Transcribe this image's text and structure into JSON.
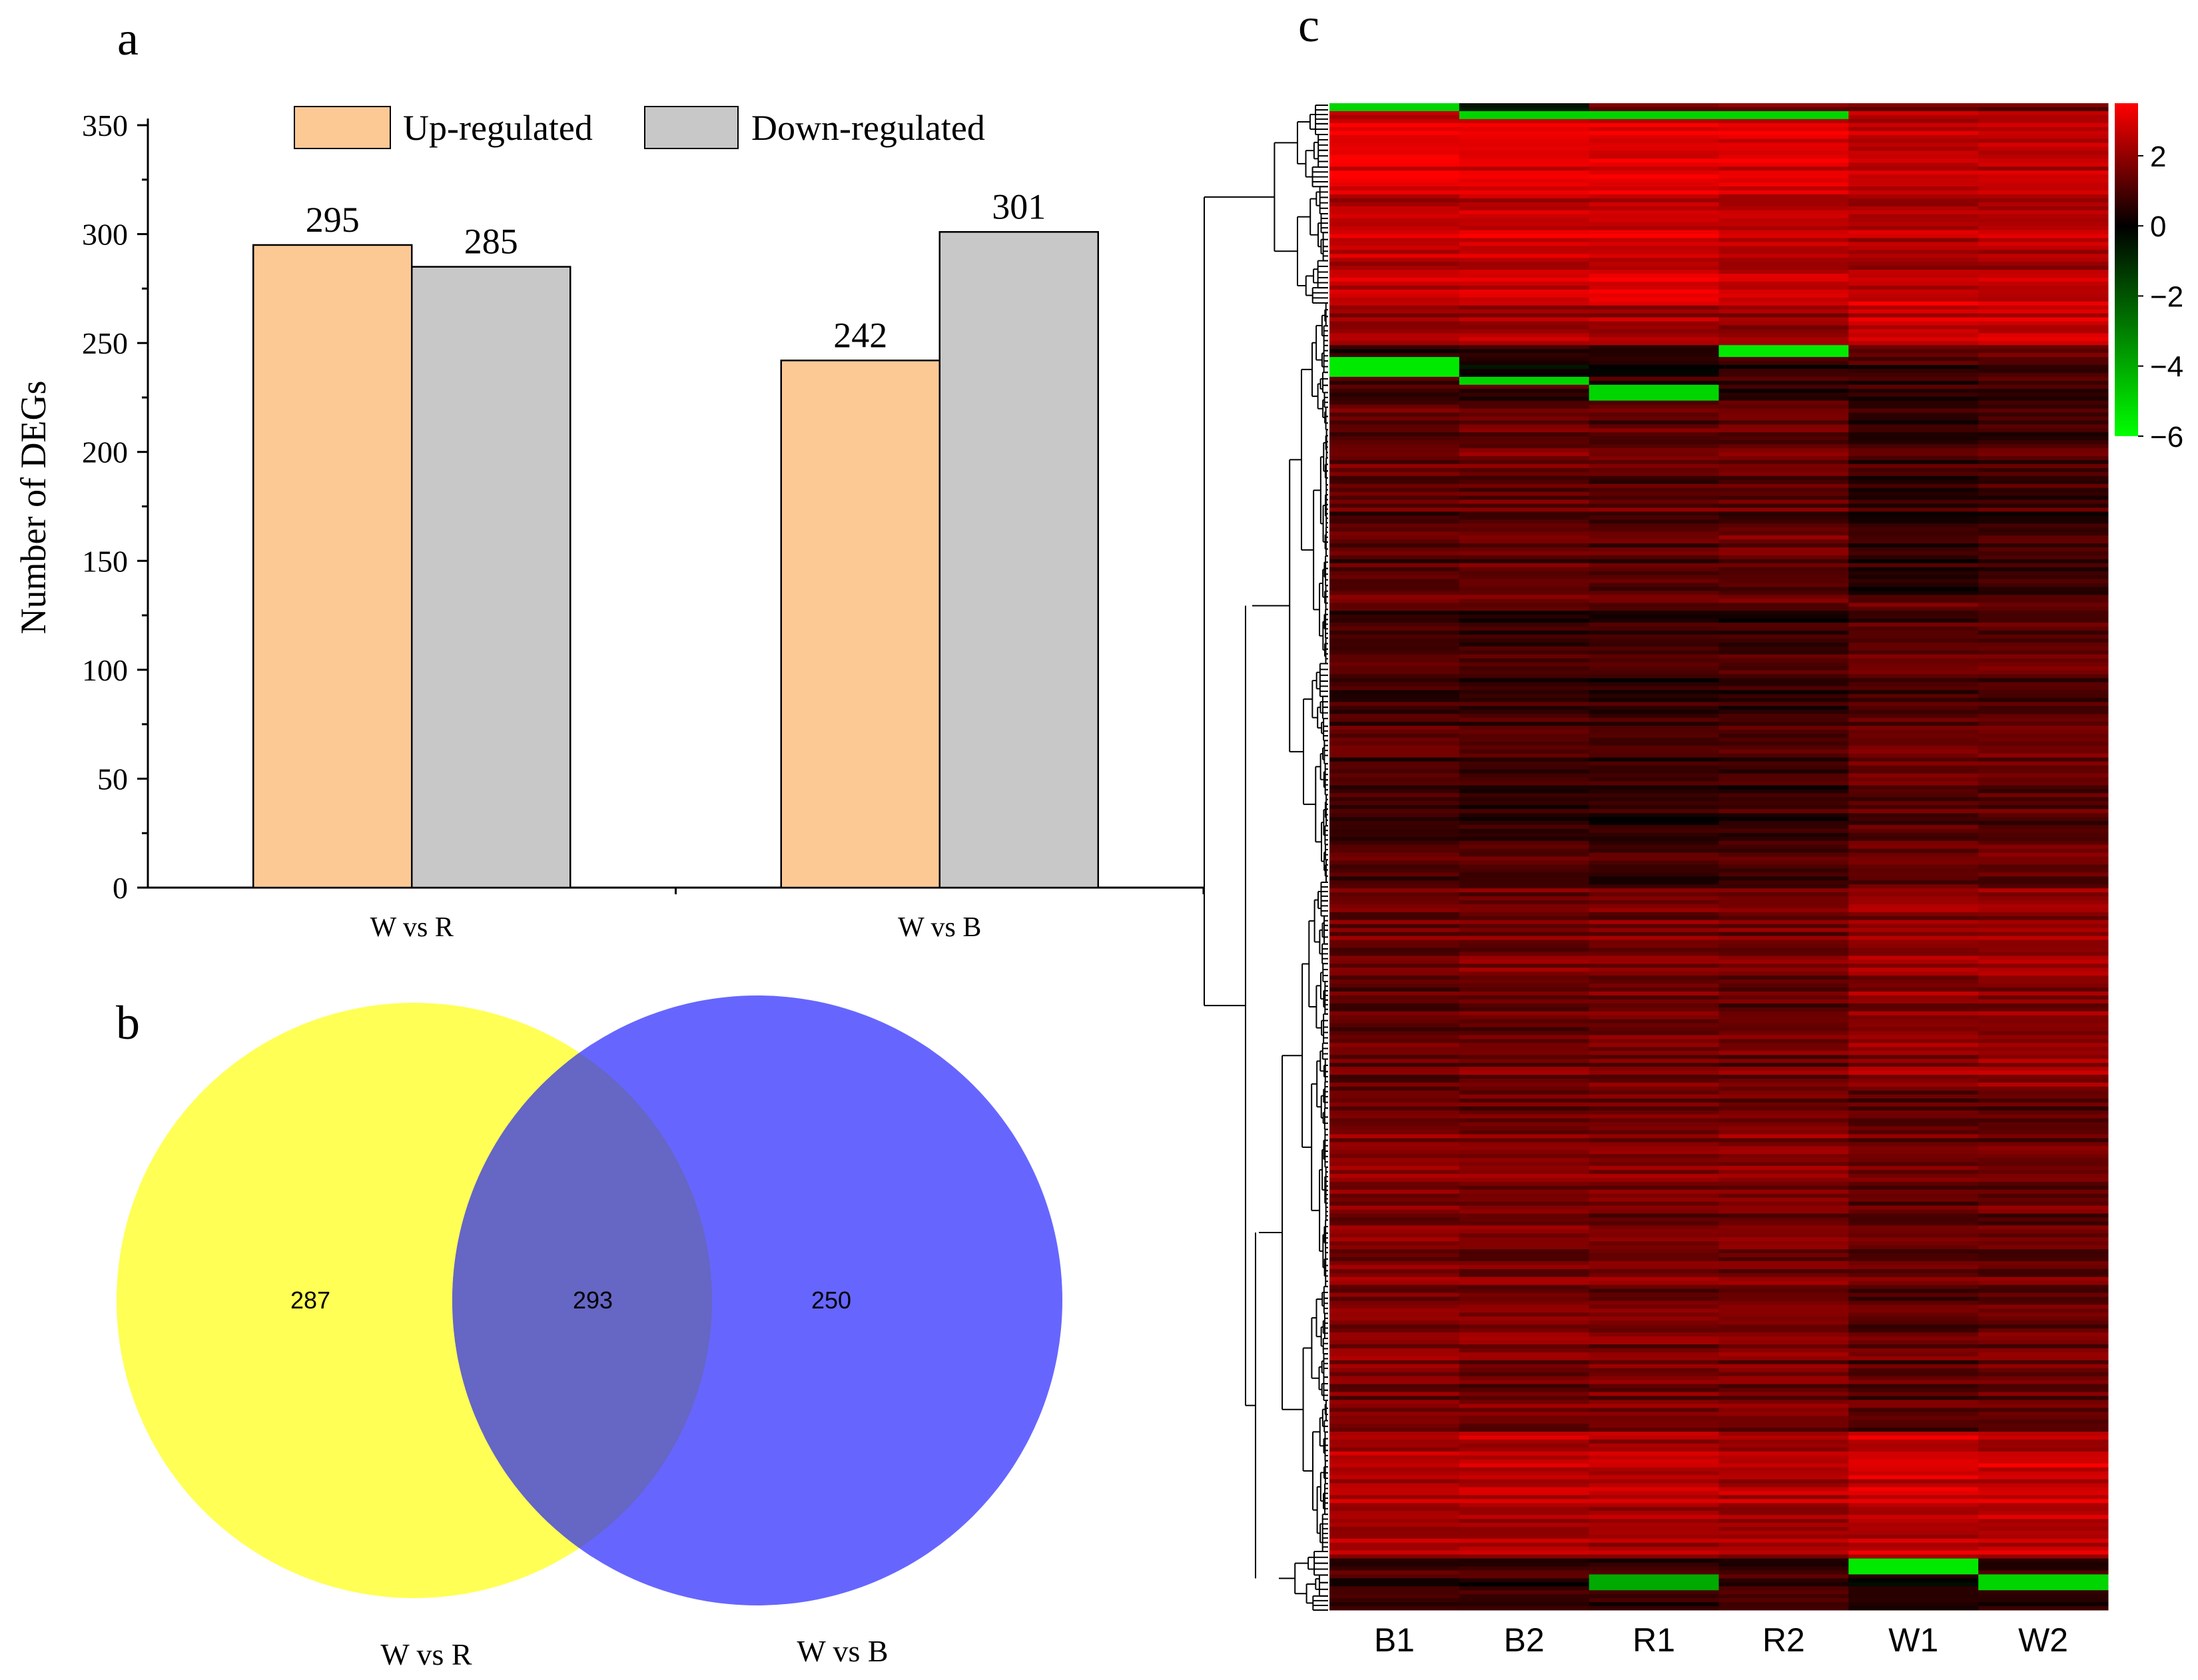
{
  "panels": {
    "a": "a",
    "b": "b",
    "c": "c"
  },
  "chart_data": [
    {
      "type": "bar",
      "panel": "a",
      "categories": [
        "W vs R",
        "W vs B"
      ],
      "series": [
        {
          "name": "Up-regulated",
          "values": [
            295,
            242
          ],
          "color": "#FCC995"
        },
        {
          "name": "Down-regulated",
          "values": [
            285,
            301
          ],
          "color": "#C8C8C8"
        }
      ],
      "ylabel": "Number of DEGs",
      "xlabel": "",
      "ylim": [
        0,
        350
      ],
      "yticks": [
        0,
        50,
        100,
        150,
        200,
        250,
        300,
        350
      ],
      "legend_position": "top",
      "grid": false
    },
    {
      "type": "venn",
      "panel": "b",
      "sets": [
        {
          "name": "W vs R",
          "only": 287,
          "color": "#FFFF55"
        },
        {
          "name": "W vs B",
          "only": 250,
          "color": "#6666FF"
        }
      ],
      "intersection": 293,
      "overlap_color": "#6666C4"
    },
    {
      "type": "heatmap",
      "panel": "c",
      "columns": [
        "B1",
        "B2",
        "R1",
        "R2",
        "W1",
        "W2"
      ],
      "colorbar": {
        "ticks": [
          "2",
          "0",
          "−2",
          "−4",
          "−6"
        ],
        "range": [
          -6,
          3.5
        ],
        "colors": [
          "#00FF00",
          "#000000",
          "#FF0000"
        ]
      },
      "dendrogram": "rows"
    }
  ]
}
